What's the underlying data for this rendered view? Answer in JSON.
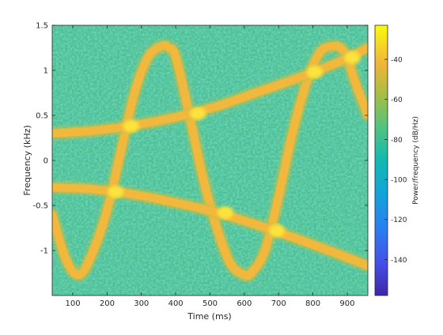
{
  "chart_data": {
    "type": "heatmap",
    "title": "",
    "xlabel": "Time (ms)",
    "ylabel": "Frequency (kHz)",
    "xlim": [
      40,
      960
    ],
    "ylim": [
      -1.5,
      1.5
    ],
    "xticks": [
      100,
      200,
      300,
      400,
      500,
      600,
      700,
      800,
      900
    ],
    "yticks": [
      1.5,
      1,
      0.5,
      0,
      -0.5,
      -1
    ],
    "ytick_labels": [
      "1.5",
      "1",
      "0.5",
      "0",
      "-0.5",
      "-1"
    ],
    "colorbar": {
      "label": "Power/frequency (dB/Hz)",
      "range": [
        -158,
        -23
      ],
      "ticks": [
        -40,
        -60,
        -80,
        -100,
        -120,
        -140
      ],
      "colormap": "parula",
      "background_level_db": -80,
      "ridge_level_db": -45,
      "crossing_level_db": -35
    },
    "series": [
      {
        "kind": "sinusoidal-chirp",
        "x": [
          40,
          80,
          120,
          160,
          200,
          240,
          280,
          320,
          360,
          380,
          400,
          440,
          480,
          520,
          560,
          600,
          620,
          660,
          700,
          740,
          780,
          820,
          860,
          880,
          900,
          920,
          960
        ],
        "y": [
          -0.6,
          -1.1,
          -1.27,
          -1.0,
          -0.55,
          0.1,
          0.75,
          1.15,
          1.27,
          1.25,
          1.15,
          0.5,
          -0.2,
          -0.75,
          -1.15,
          -1.27,
          -1.25,
          -1.0,
          -0.4,
          0.3,
          0.85,
          1.2,
          1.27,
          1.25,
          1.15,
          0.9,
          0.5
        ]
      },
      {
        "kind": "upper-tone",
        "x": [
          40,
          160,
          280,
          400,
          520,
          640,
          760,
          880,
          960
        ],
        "y": [
          0.3,
          0.33,
          0.39,
          0.48,
          0.6,
          0.76,
          0.92,
          1.1,
          1.25
        ]
      },
      {
        "kind": "lower-tone",
        "x": [
          40,
          160,
          280,
          400,
          520,
          640,
          760,
          880,
          960
        ],
        "y": [
          -0.3,
          -0.32,
          -0.38,
          -0.47,
          -0.58,
          -0.72,
          -0.88,
          -1.05,
          -1.17
        ]
      }
    ],
    "crossings": [
      {
        "x": 225,
        "y": -0.35
      },
      {
        "x": 270,
        "y": 0.38
      },
      {
        "x": 465,
        "y": 0.52
      },
      {
        "x": 545,
        "y": -0.58
      },
      {
        "x": 695,
        "y": -0.78
      },
      {
        "x": 805,
        "y": 0.98
      },
      {
        "x": 915,
        "y": 1.14
      }
    ],
    "grid": false
  }
}
